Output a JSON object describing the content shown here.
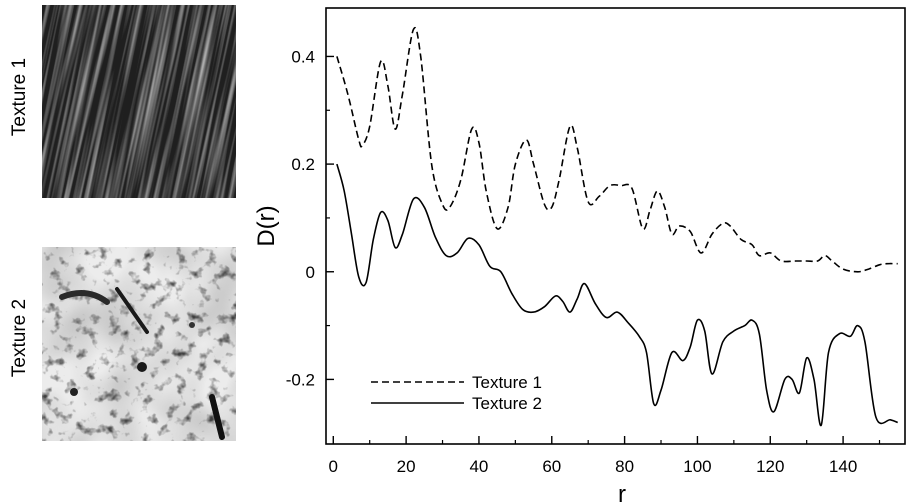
{
  "textures": [
    {
      "label": "Texture 1",
      "style": "dark-streaks"
    },
    {
      "label": "Texture 2",
      "style": "light-speckled"
    }
  ],
  "chart_data": {
    "type": "line",
    "title": "",
    "xlabel": "r",
    "ylabel": "D(r)",
    "xlim": [
      -2,
      157
    ],
    "ylim": [
      -0.32,
      0.49
    ],
    "xticks": [
      0,
      20,
      40,
      60,
      80,
      100,
      120,
      140
    ],
    "yticks": [
      -0.2,
      0,
      0.2,
      0.4
    ],
    "ytick_labels": [
      "-0.2",
      "0",
      "0.2",
      "0.4"
    ],
    "grid": false,
    "legend_position": "bottom-left",
    "series": [
      {
        "name": "Texture 1",
        "line_style": "dashed",
        "x": [
          1,
          4,
          7,
          8,
          10,
          13,
          15,
          17,
          19,
          22,
          24,
          27,
          30,
          32,
          35,
          38,
          40,
          42,
          45,
          48,
          50,
          53,
          55,
          58,
          60,
          62,
          65,
          67,
          70,
          73,
          76,
          79,
          82,
          85,
          87,
          89,
          91,
          93,
          95,
          98,
          101,
          104,
          107,
          109,
          112,
          115,
          117,
          120,
          123,
          127,
          130,
          133,
          135,
          137,
          140,
          144,
          147,
          150,
          152,
          155
        ],
        "y": [
          0.4,
          0.33,
          0.245,
          0.235,
          0.27,
          0.39,
          0.345,
          0.265,
          0.33,
          0.45,
          0.4,
          0.2,
          0.125,
          0.12,
          0.17,
          0.265,
          0.24,
          0.15,
          0.08,
          0.12,
          0.2,
          0.245,
          0.2,
          0.125,
          0.12,
          0.17,
          0.27,
          0.23,
          0.13,
          0.14,
          0.16,
          0.16,
          0.155,
          0.08,
          0.115,
          0.15,
          0.12,
          0.07,
          0.085,
          0.075,
          0.035,
          0.07,
          0.09,
          0.085,
          0.06,
          0.05,
          0.03,
          0.035,
          0.02,
          0.02,
          0.02,
          0.02,
          0.03,
          0.02,
          0.005,
          0.0,
          0.005,
          0.013,
          0.015,
          0.015
        ]
      },
      {
        "name": "Texture 2",
        "line_style": "solid",
        "x": [
          1,
          3,
          5,
          7,
          9,
          11,
          13,
          15,
          17,
          19,
          22,
          25,
          28,
          31,
          34,
          37,
          40,
          43,
          46,
          49,
          52,
          55,
          58,
          61,
          63,
          65,
          67,
          69,
          72,
          75,
          78,
          81,
          84,
          86,
          88,
          90,
          93,
          96,
          98,
          100,
          102,
          104,
          107,
          110,
          113,
          115,
          117,
          119,
          121,
          124,
          126,
          128,
          130,
          132,
          134,
          136,
          139,
          142,
          144,
          146,
          149,
          153,
          155
        ],
        "y": [
          0.2,
          0.15,
          0.07,
          -0.01,
          -0.02,
          0.06,
          0.11,
          0.095,
          0.045,
          0.07,
          0.135,
          0.12,
          0.065,
          0.03,
          0.035,
          0.062,
          0.05,
          0.01,
          0.0,
          -0.04,
          -0.07,
          -0.075,
          -0.065,
          -0.045,
          -0.055,
          -0.075,
          -0.05,
          -0.022,
          -0.06,
          -0.085,
          -0.075,
          -0.095,
          -0.12,
          -0.15,
          -0.245,
          -0.22,
          -0.15,
          -0.165,
          -0.14,
          -0.09,
          -0.11,
          -0.19,
          -0.13,
          -0.11,
          -0.1,
          -0.09,
          -0.115,
          -0.22,
          -0.26,
          -0.2,
          -0.2,
          -0.225,
          -0.16,
          -0.2,
          -0.285,
          -0.15,
          -0.115,
          -0.12,
          -0.1,
          -0.13,
          -0.27,
          -0.275,
          -0.28
        ]
      }
    ]
  }
}
